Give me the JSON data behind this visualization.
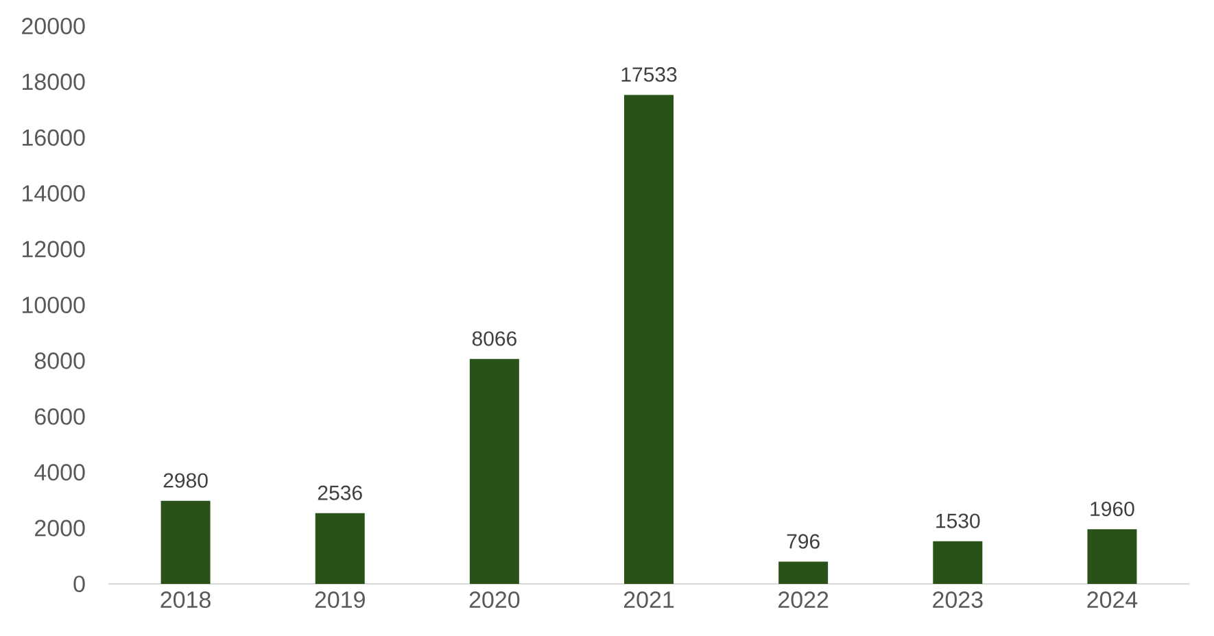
{
  "chart_data": {
    "type": "bar",
    "categories": [
      "2018",
      "2019",
      "2020",
      "2021",
      "2022",
      "2023",
      "2024"
    ],
    "values": [
      2980,
      2536,
      8066,
      17533,
      796,
      1530,
      1960
    ],
    "color": "#2a5218",
    "ylim": [
      0,
      20000
    ],
    "yticks": [
      0,
      2000,
      4000,
      6000,
      8000,
      10000,
      12000,
      14000,
      16000,
      18000,
      20000
    ],
    "data_labels": true
  }
}
